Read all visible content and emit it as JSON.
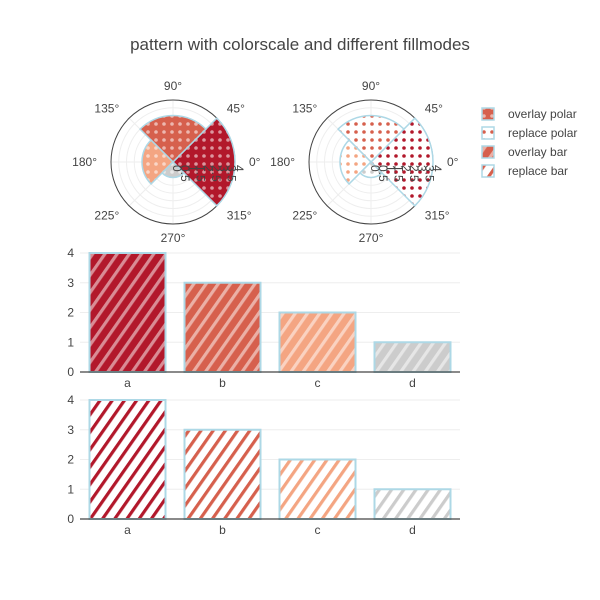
{
  "colors": {
    "c1": "#b2182b",
    "c2": "#d6604d",
    "c3": "#f4a582",
    "c4": "#cccccc",
    "border": "#add8e6",
    "grid": "#eeeeee",
    "axis": "#444444"
  },
  "chart_data": [
    {
      "type": "polar",
      "subplot": "polar-overlay",
      "title": "pattern with colorscale and different fillmodes",
      "angular_tick_labels": [
        "90°",
        "45°",
        "0°",
        "315°",
        "270°",
        "225°",
        "180°",
        "135°"
      ],
      "radial_tick_labels": [
        "0",
        "0.5",
        "1",
        "1.5",
        "2",
        "2.5",
        "3",
        "3.5",
        "4"
      ],
      "series": [
        {
          "name": "overlay polar",
          "pattern": "dots",
          "fillmode": "overlay",
          "bars": [
            {
              "theta": 0,
              "width": 90,
              "r": 4,
              "color": "#b2182b"
            },
            {
              "theta": 90,
              "width": 90,
              "r": 3,
              "color": "#d6604d"
            },
            {
              "theta": 180,
              "width": 90,
              "r": 2,
              "color": "#f4a582"
            },
            {
              "theta": 270,
              "width": 90,
              "r": 1,
              "color": "#cccccc"
            }
          ]
        },
        {
          "name": "replace polar",
          "pattern": "dots",
          "fillmode": "replace",
          "bars": [
            {
              "theta": 0,
              "width": 90,
              "r": 4,
              "color": "#b2182b"
            },
            {
              "theta": 90,
              "width": 90,
              "r": 3,
              "color": "#d6604d"
            },
            {
              "theta": 180,
              "width": 90,
              "r": 2,
              "color": "#f4a582"
            },
            {
              "theta": 270,
              "width": 90,
              "r": 1,
              "color": "#cccccc"
            }
          ]
        }
      ]
    },
    {
      "type": "bar",
      "subplot": "bar-overlay",
      "series_name": "overlay bar",
      "pattern": "diagonal",
      "fillmode": "overlay",
      "categories": [
        "a",
        "b",
        "c",
        "d"
      ],
      "values": [
        4,
        3,
        2,
        1
      ],
      "colors": [
        "#b2182b",
        "#d6604d",
        "#f4a582",
        "#cccccc"
      ],
      "ylim": [
        0,
        4
      ],
      "yticks": [
        0,
        1,
        2,
        3,
        4
      ]
    },
    {
      "type": "bar",
      "subplot": "bar-replace",
      "series_name": "replace bar",
      "pattern": "diagonal",
      "fillmode": "replace",
      "categories": [
        "a",
        "b",
        "c",
        "d"
      ],
      "values": [
        4,
        3,
        2,
        1
      ],
      "colors": [
        "#b2182b",
        "#d6604d",
        "#f4a582",
        "#cccccc"
      ],
      "ylim": [
        0,
        4
      ],
      "yticks": [
        0,
        1,
        2,
        3,
        4
      ]
    }
  ],
  "legend": {
    "position": "top-right",
    "items": [
      "overlay polar",
      "replace polar",
      "overlay bar",
      "replace bar"
    ]
  }
}
